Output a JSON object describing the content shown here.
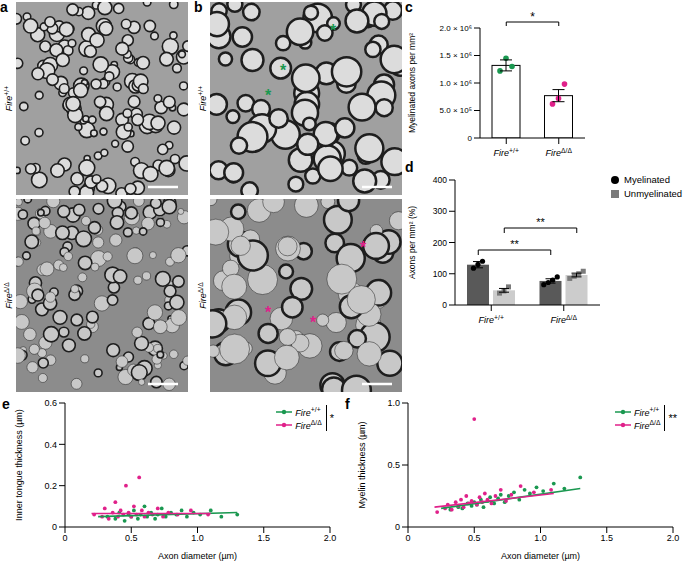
{
  "images": [
    {
      "panel": "a",
      "rows": [
        "Fire+/+",
        "FireΔ/Δ"
      ]
    },
    {
      "panel": "b",
      "rows": [
        "Fire+/+",
        "FireΔ/Δ"
      ],
      "markers": [
        {
          "text": "*",
          "color": "#1a9850",
          "count": 3
        },
        {
          "text": "*",
          "color": "#e0218a",
          "count": 3
        }
      ]
    }
  ],
  "chart_data": [
    {
      "panel": "c",
      "type": "bar",
      "categories": [
        "Fire+/+",
        "FireΔ/Δ"
      ],
      "values": [
        1320000,
        770000
      ],
      "error": [
        100000,
        110000
      ],
      "points": [
        [
          1220000,
          1450000,
          1300000
        ],
        [
          620000,
          720000,
          980000
        ]
      ],
      "colors": [
        "#1a9850",
        "#e0218a"
      ],
      "ylabel": "Myelinated axons per mm²",
      "ylim": [
        0,
        2000000
      ],
      "yticks": [
        0,
        {
          "value": 500000,
          "label": "5.0 × 10⁵"
        },
        {
          "value": 1000000,
          "label": "1.0 × 10⁶"
        },
        {
          "value": 1500000,
          "label": "1.5 × 10⁶"
        },
        {
          "value": 2000000,
          "label": "2.0 × 10⁶"
        }
      ],
      "significance": [
        {
          "text": "*",
          "between": [
            "Fire+/+",
            "FireΔ/Δ"
          ]
        }
      ]
    },
    {
      "panel": "d",
      "type": "bar",
      "categories": [
        "Fire+/+",
        "FireΔ/Δ"
      ],
      "series": [
        {
          "name": "Myelinated",
          "color": "#595959",
          "marker": "circle",
          "values": [
            129,
            77
          ],
          "error": [
            10,
            7
          ],
          "points": [
            [
              118,
              130,
              140
            ],
            [
              65,
              72,
              80,
              90
            ]
          ]
        },
        {
          "name": "Unmyelinated",
          "color": "#cccccc",
          "marker": "square",
          "values": [
            47,
            96
          ],
          "error": [
            6,
            6
          ],
          "points": [
            [
              38,
              45,
              58
            ],
            [
              85,
              92,
              100,
              108
            ]
          ]
        }
      ],
      "ylabel": "Axons per mm² (%)",
      "ylim": [
        0,
        400
      ],
      "yticks": [
        0,
        100,
        200,
        300,
        400
      ],
      "legend": "right",
      "significance": [
        {
          "text": "**",
          "series": "Myelinated"
        },
        {
          "text": "**",
          "series": "Unmyelinated"
        }
      ]
    },
    {
      "panel": "e",
      "type": "scatter",
      "xlabel": "Axon diameter (µm)",
      "ylabel": "Inner tongue thickness (µm)",
      "xlim": [
        0,
        2
      ],
      "xticks": [
        0,
        0.5,
        {
          "value": 1,
          "label": "1.0"
        },
        1.5,
        {
          "value": 2,
          "label": "2.0"
        }
      ],
      "ylim": [
        0,
        0.6
      ],
      "yticks": [
        0,
        0.2,
        0.4,
        0.6
      ],
      "legend": "upper right",
      "significance": "*",
      "series": [
        {
          "name": "Fire+/+",
          "color": "#1a9850",
          "marker": "circle",
          "x": [
            0.32,
            0.38,
            0.41,
            0.45,
            0.48,
            0.5,
            0.52,
            0.55,
            0.57,
            0.6,
            0.62,
            0.65,
            0.68,
            0.7,
            0.73,
            0.76,
            0.8,
            0.84,
            0.88,
            0.92,
            0.97,
            1.02,
            1.1,
            1.18,
            1.3
          ],
          "y": [
            0.05,
            0.04,
            0.07,
            0.03,
            0.06,
            0.05,
            0.08,
            0.04,
            0.06,
            0.1,
            0.05,
            0.07,
            0.04,
            0.06,
            0.09,
            0.05,
            0.07,
            0.06,
            0.08,
            0.05,
            0.07,
            0.06,
            0.08,
            0.05,
            0.06
          ],
          "fit": {
            "x": [
              0.25,
              1.3
            ],
            "y": [
              0.05,
              0.07
            ]
          }
        },
        {
          "name": "FireΔ/Δ",
          "color": "#e0218a",
          "marker": "circle",
          "x": [
            0.22,
            0.28,
            0.3,
            0.33,
            0.36,
            0.38,
            0.4,
            0.42,
            0.44,
            0.46,
            0.48,
            0.5,
            0.52,
            0.54,
            0.56,
            0.58,
            0.6,
            0.63,
            0.66,
            0.7,
            0.74,
            0.78,
            0.85,
            0.95,
            1.08
          ],
          "y": [
            0.06,
            0.05,
            0.09,
            0.04,
            0.07,
            0.12,
            0.05,
            0.08,
            0.06,
            0.2,
            0.07,
            0.05,
            0.1,
            0.06,
            0.24,
            0.08,
            0.05,
            0.07,
            0.06,
            0.09,
            0.05,
            0.07,
            0.06,
            0.08,
            0.06
          ],
          "fit": {
            "x": [
              0.2,
              1.1
            ],
            "y": [
              0.065,
              0.065
            ]
          }
        }
      ]
    },
    {
      "panel": "f",
      "type": "scatter",
      "xlabel": "Axon diameter (µm)",
      "ylabel": "Myelin thickness (µm)",
      "xlim": [
        0,
        2
      ],
      "xticks": [
        0,
        0.5,
        {
          "value": 1,
          "label": "1.0"
        },
        1.5,
        {
          "value": 2,
          "label": "2.0"
        }
      ],
      "ylim": [
        0,
        1
      ],
      "yticks": [
        0,
        0.5,
        {
          "value": 1,
          "label": "1.0"
        }
      ],
      "legend": "upper right",
      "significance": "**",
      "series": [
        {
          "name": "Fire+/+",
          "color": "#1a9850",
          "marker": "circle",
          "x": [
            0.32,
            0.38,
            0.41,
            0.45,
            0.48,
            0.5,
            0.52,
            0.55,
            0.57,
            0.6,
            0.62,
            0.65,
            0.68,
            0.7,
            0.73,
            0.76,
            0.8,
            0.84,
            0.88,
            0.92,
            0.97,
            1.02,
            1.1,
            1.18,
            1.3
          ],
          "y": [
            0.14,
            0.16,
            0.15,
            0.19,
            0.17,
            0.2,
            0.18,
            0.22,
            0.16,
            0.21,
            0.24,
            0.19,
            0.23,
            0.26,
            0.2,
            0.25,
            0.28,
            0.22,
            0.3,
            0.27,
            0.32,
            0.29,
            0.35,
            0.31,
            0.4
          ],
          "fit": {
            "x": [
              0.25,
              1.3
            ],
            "y": [
              0.15,
              0.31
            ]
          }
        },
        {
          "name": "FireΔ/Δ",
          "color": "#e0218a",
          "marker": "circle",
          "x": [
            0.22,
            0.28,
            0.3,
            0.33,
            0.36,
            0.38,
            0.4,
            0.42,
            0.44,
            0.46,
            0.48,
            0.5,
            0.52,
            0.54,
            0.56,
            0.58,
            0.6,
            0.63,
            0.66,
            0.7,
            0.74,
            0.78,
            0.85,
            0.95,
            1.08
          ],
          "y": [
            0.12,
            0.15,
            0.18,
            0.14,
            0.2,
            0.17,
            0.22,
            0.16,
            0.25,
            0.19,
            0.21,
            0.87,
            0.18,
            0.24,
            0.2,
            0.27,
            0.22,
            0.19,
            0.25,
            0.3,
            0.21,
            0.26,
            0.33,
            0.28,
            0.3
          ],
          "fit": {
            "x": [
              0.2,
              1.1
            ],
            "y": [
              0.16,
              0.27
            ]
          }
        }
      ]
    }
  ]
}
